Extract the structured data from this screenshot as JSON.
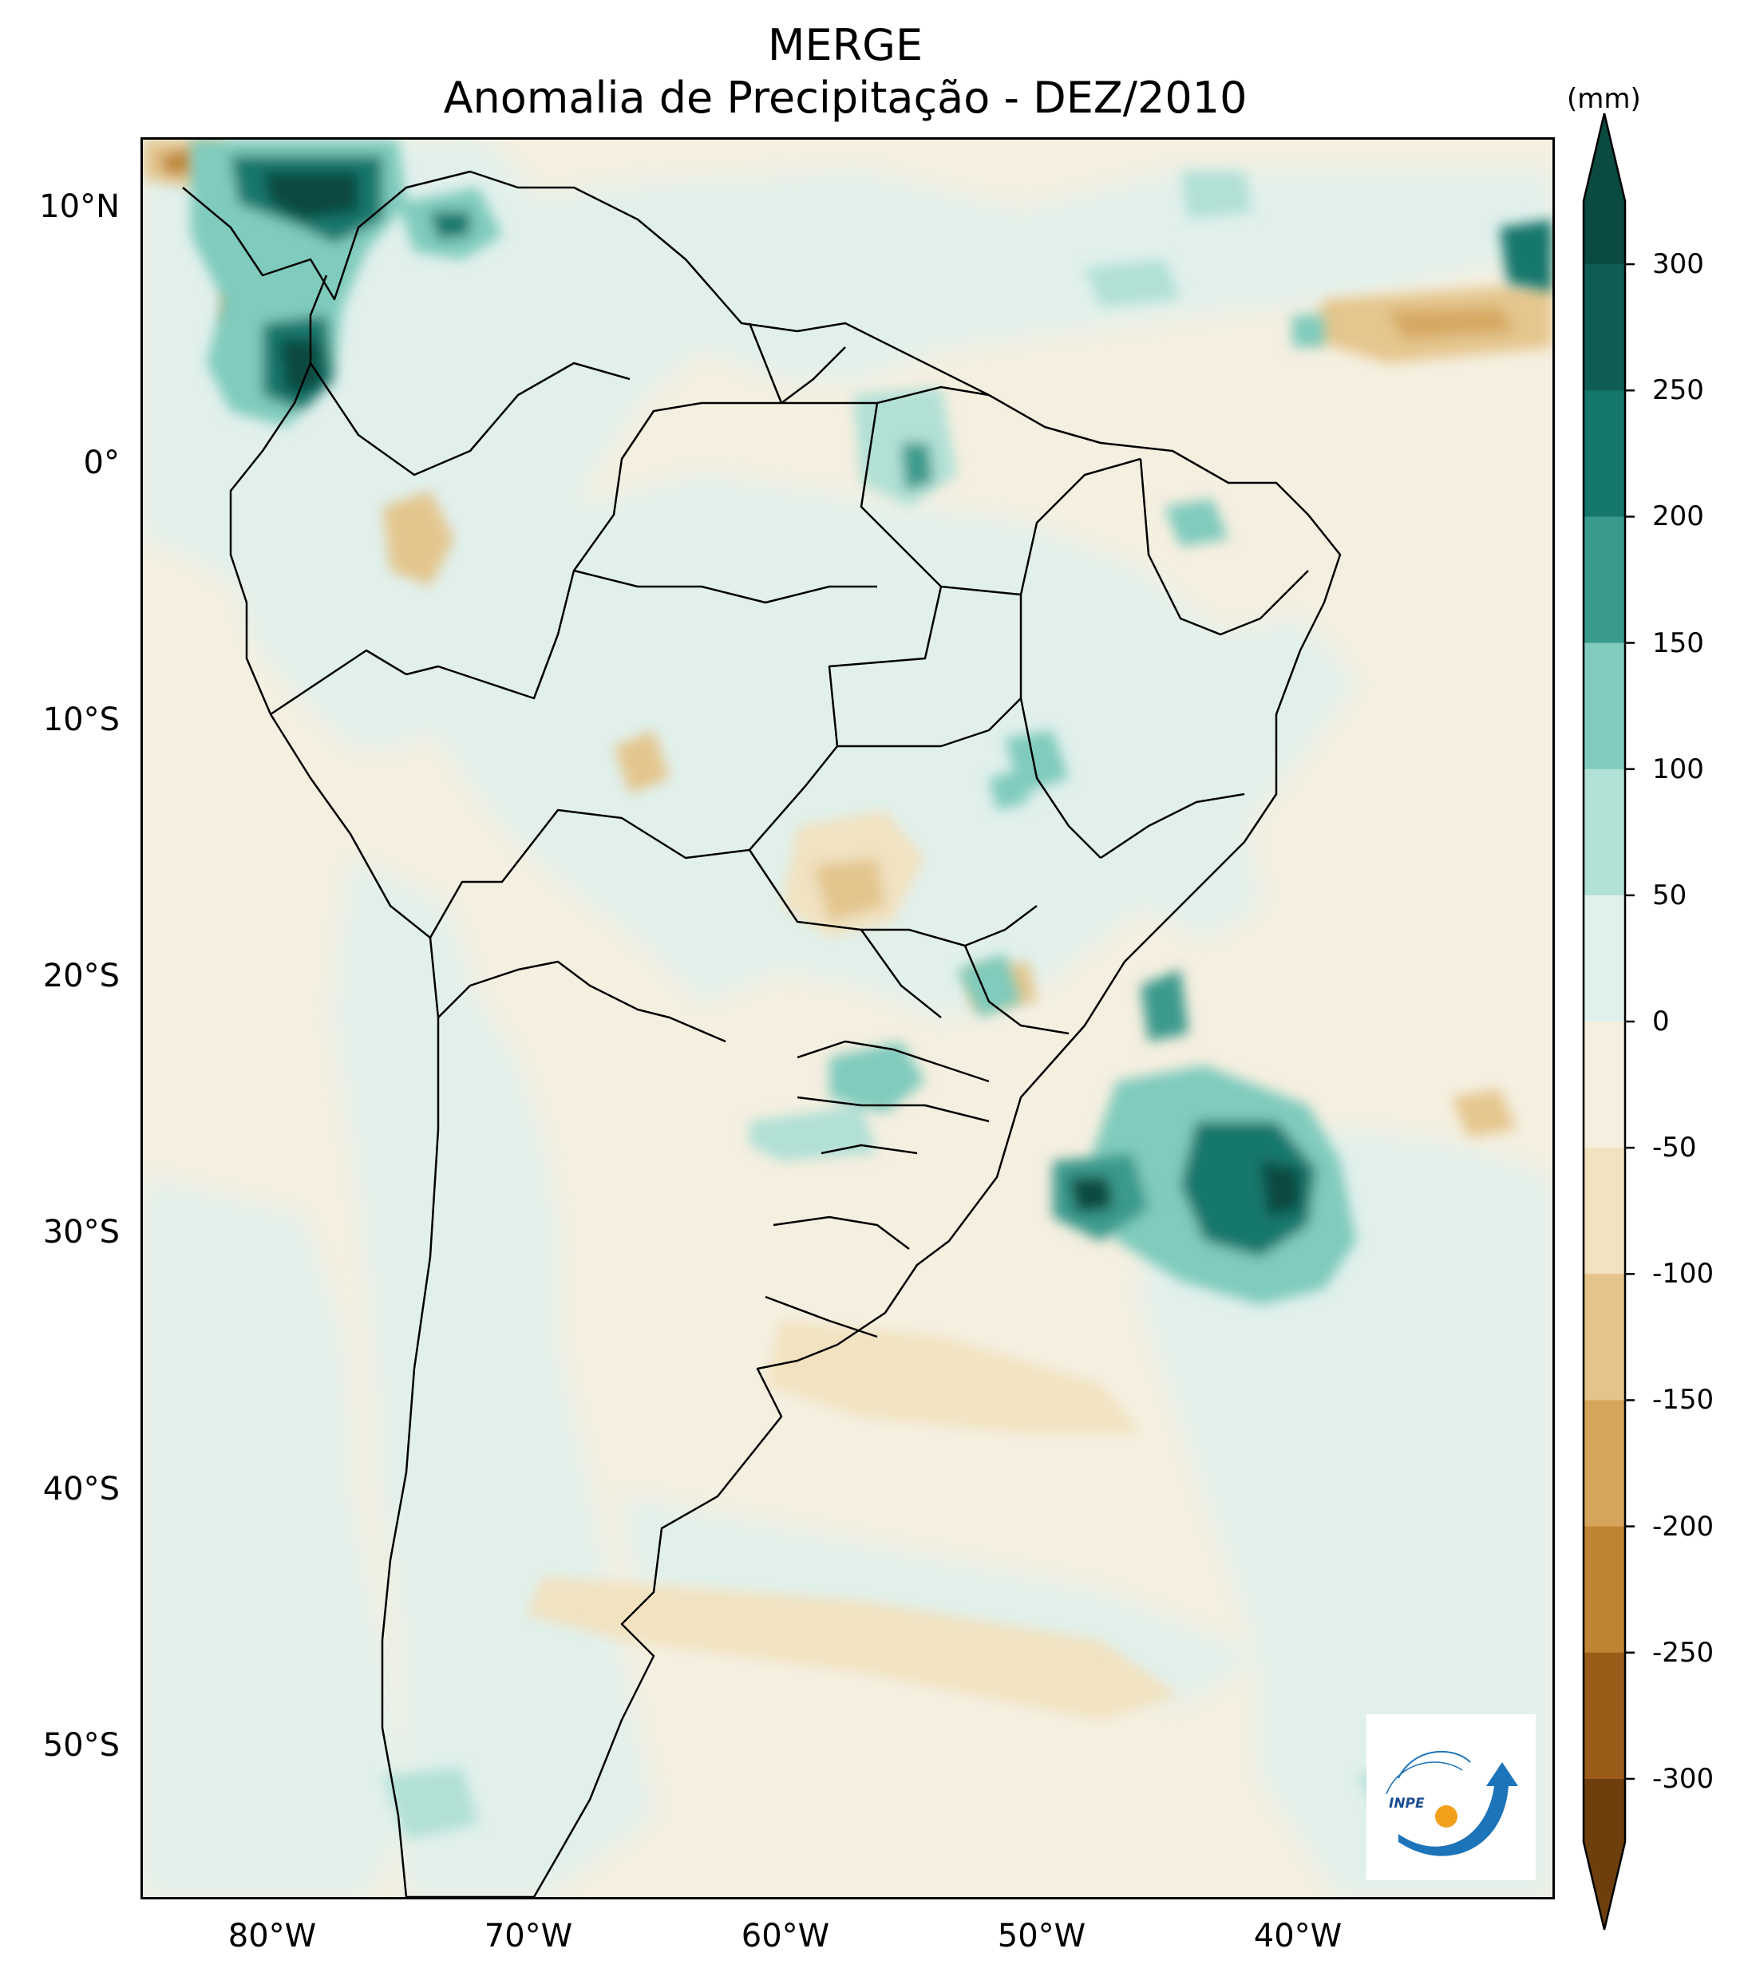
{
  "figure": {
    "title_line1": "MERGE",
    "title_line2": "Anomalia de Precipitação - DEZ/2010"
  },
  "axes": {
    "lat_ticks": [
      "10°N",
      "0°",
      "10°S",
      "20°S",
      "30°S",
      "40°S",
      "50°S"
    ],
    "lon_ticks": [
      "80°W",
      "70°W",
      "60°W",
      "50°W",
      "40°W"
    ]
  },
  "colorbar": {
    "units": "(mm)",
    "tick_labels": [
      "300",
      "250",
      "200",
      "150",
      "100",
      "50",
      "0",
      "-50",
      "-100",
      "-150",
      "-200",
      "-250",
      "-300"
    ],
    "colors_top_to_bottom": [
      "#0b4a40",
      "#0f5e54",
      "#15776c",
      "#3a9a8c",
      "#7fcbbd",
      "#b1e0d6",
      "#e0f1ed",
      "#f5efe0",
      "#f2e2bf",
      "#e4c48a",
      "#d5a55c",
      "#bf8332",
      "#9b5c1a",
      "#6e3f0c"
    ]
  },
  "logo": {
    "text": "INPE",
    "colors": [
      "#1d74b9",
      "#f2a01c"
    ]
  }
}
